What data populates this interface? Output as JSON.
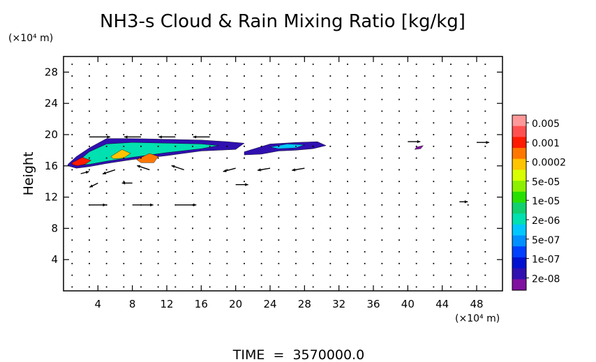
{
  "chart_data": {
    "type": "heatmap",
    "title": "NH3-s Cloud & Rain Mixing Ratio [kg/kg]",
    "ylabel": "Height",
    "xunit": "(×10⁴ m)",
    "yunit": "(×10⁴ m)",
    "footer": "TIME  =  3570000.0",
    "xlim": [
      0,
      51
    ],
    "ylim": [
      0,
      30
    ],
    "xticks": [
      4,
      8,
      12,
      16,
      20,
      24,
      28,
      32,
      36,
      40,
      44,
      48
    ],
    "yticks": [
      4,
      8,
      12,
      16,
      20,
      24,
      28
    ],
    "xtick_labels": [
      "4",
      "8",
      "12",
      "16",
      "20",
      "24",
      "28",
      "32",
      "36",
      "40",
      "44",
      "48"
    ],
    "ytick_labels": [
      "4",
      "8",
      "12",
      "16",
      "20",
      "24",
      "28"
    ],
    "colorbar": {
      "labels": [
        "0.005",
        "0.001",
        "0.0002",
        "5e-05",
        "1e-05",
        "2e-06",
        "5e-07",
        "1e-07",
        "2e-08"
      ],
      "colors": [
        "#ff9999",
        "#ff5050",
        "#ff1a00",
        "#ff7700",
        "#ffc400",
        "#d7ff00",
        "#8cf000",
        "#28e000",
        "#10d070",
        "#00e0b0",
        "#00c8ff",
        "#0090ff",
        "#0040ff",
        "#0010d0",
        "#3010b0",
        "#8010a0"
      ]
    },
    "cloud_regions": [
      {
        "x": [
          0.5,
          1.5,
          3,
          5,
          8,
          12,
          16,
          19,
          21,
          20,
          16,
          12,
          8,
          5,
          3,
          1.5,
          0.5
        ],
        "y": [
          16.2,
          17.2,
          18.3,
          19.5,
          19.5,
          19.4,
          19.3,
          19.1,
          18.9,
          18.1,
          17.9,
          17.3,
          16.8,
          16.3,
          15.9,
          15.7,
          16.0
        ],
        "level": 1
      },
      {
        "x": [
          1.5,
          3,
          5,
          8,
          12,
          16,
          18,
          16,
          12,
          8,
          5,
          3,
          1.5
        ],
        "y": [
          16.4,
          17.8,
          18.8,
          19.0,
          18.9,
          18.8,
          18.6,
          18.2,
          17.7,
          17.1,
          16.6,
          16.2,
          16.1
        ],
        "level": 6
      },
      {
        "x": [
          1.0,
          2.2,
          3.2,
          2.5,
          1.6,
          1.0
        ],
        "y": [
          16.4,
          17.1,
          16.7,
          16.2,
          16.0,
          16.2
        ],
        "level": 13
      },
      {
        "x": [
          5.5,
          6.8,
          7.8,
          7.0,
          5.8
        ],
        "y": [
          17.2,
          18.1,
          17.6,
          17.0,
          16.9
        ],
        "level": 11
      },
      {
        "x": [
          8.5,
          10.0,
          11.0,
          10.5,
          9.0
        ],
        "y": [
          16.8,
          17.6,
          17.2,
          16.4,
          16.4
        ],
        "level": 12
      },
      {
        "x": [
          21,
          24,
          27,
          29.5,
          30.5,
          29,
          27,
          25,
          23,
          21
        ],
        "y": [
          17.8,
          18.8,
          19.0,
          19.1,
          18.6,
          18.2,
          18.0,
          17.9,
          17.5,
          17.4
        ],
        "level": 1
      },
      {
        "x": [
          24,
          26,
          28,
          27,
          25
        ],
        "y": [
          18.4,
          18.8,
          18.7,
          18.3,
          18.2
        ],
        "level": 5
      },
      {
        "x": [
          41.0,
          41.8,
          41.5,
          40.8
        ],
        "y": [
          18.4,
          18.6,
          18.2,
          18.1
        ],
        "level": 0
      }
    ],
    "wind_vectors": [
      {
        "x": 3,
        "y": 19.7,
        "u": 5,
        "w": 0
      },
      {
        "x": 9,
        "y": 19.7,
        "u": -4,
        "w": 0
      },
      {
        "x": 13,
        "y": 19.7,
        "u": -4,
        "w": 0
      },
      {
        "x": 17,
        "y": 19.7,
        "u": -4,
        "w": 0
      },
      {
        "x": 40,
        "y": 19.1,
        "u": 3,
        "w": 0
      },
      {
        "x": 48,
        "y": 19.0,
        "u": 3,
        "w": 0
      },
      {
        "x": 2,
        "y": 15.0,
        "u": 2,
        "w": 0.5
      },
      {
        "x": 6,
        "y": 15.5,
        "u": -3,
        "w": -1
      },
      {
        "x": 10,
        "y": 15.5,
        "u": -3,
        "w": 1
      },
      {
        "x": 14,
        "y": 15.5,
        "u": -3,
        "w": 1
      },
      {
        "x": 20,
        "y": 15.7,
        "u": -3,
        "w": -0.8
      },
      {
        "x": 24,
        "y": 15.7,
        "u": -3,
        "w": -0.5
      },
      {
        "x": 28,
        "y": 15.7,
        "u": -3,
        "w": -0.5
      },
      {
        "x": 4,
        "y": 13.8,
        "u": -2,
        "w": -1
      },
      {
        "x": 8,
        "y": 13.8,
        "u": -2.5,
        "w": 0
      },
      {
        "x": 20,
        "y": 13.6,
        "u": 3,
        "w": 0
      },
      {
        "x": 3,
        "y": 11.0,
        "u": 4,
        "w": 0
      },
      {
        "x": 8,
        "y": 11.0,
        "u": 5,
        "w": 0
      },
      {
        "x": 13,
        "y": 11.0,
        "u": 5,
        "w": 0
      },
      {
        "x": 46,
        "y": 11.4,
        "u": 2,
        "w": 0
      }
    ]
  }
}
